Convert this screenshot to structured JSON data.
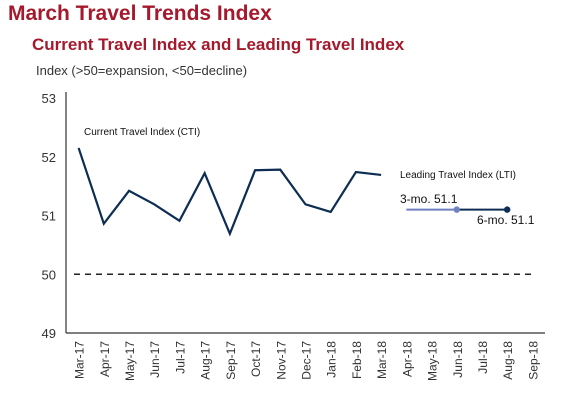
{
  "title": "March Travel Trends Index",
  "subtitle": "Current Travel Index and Leading Travel Index",
  "colors": {
    "title": "#a5192d",
    "cti": "#0d2d52",
    "lti": "#0d2d52",
    "lti_3mo_marker": "#6f7fc0",
    "axis": "#333333"
  },
  "chart_data": {
    "type": "line",
    "ylabel": "Index (>50=expansion, <50=decline)",
    "ylim": [
      49,
      53
    ],
    "yticks": [
      49,
      50,
      51,
      52,
      53
    ],
    "categories": [
      "Mar-17",
      "Apr-17",
      "May-17",
      "Jun-17",
      "Jul-17",
      "Aug-17",
      "Sep-17",
      "Oct-17",
      "Nov-17",
      "Dec-17",
      "Jan-18",
      "Feb-18",
      "Mar-18",
      "Apr-18",
      "May-18",
      "Jun-18",
      "Jul-18",
      "Aug-18",
      "Sep-18"
    ],
    "reference_line": {
      "y": 50,
      "style": "dashed"
    },
    "grid": false,
    "series": [
      {
        "name": "Current Travel Index (CTI)",
        "x": [
          "Mar-17",
          "Apr-17",
          "May-17",
          "Jun-17",
          "Jul-17",
          "Aug-17",
          "Sep-17",
          "Oct-17",
          "Nov-17",
          "Dec-17",
          "Jan-18",
          "Feb-18",
          "Mar-18"
        ],
        "values": [
          52.15,
          50.86,
          51.42,
          51.19,
          50.91,
          51.72,
          50.69,
          51.77,
          51.78,
          51.19,
          51.06,
          51.74,
          51.69
        ]
      },
      {
        "name": "Leading Travel Index (LTI)",
        "x": [
          "Apr-18",
          "Jun-18",
          "Aug-18"
        ],
        "values": [
          51.1,
          51.1,
          51.1
        ],
        "annotations": [
          {
            "x": "Jun-18",
            "text": "3-mo. 51.1"
          },
          {
            "x": "Aug-18",
            "text": "6-mo. 51.1"
          }
        ]
      }
    ]
  }
}
